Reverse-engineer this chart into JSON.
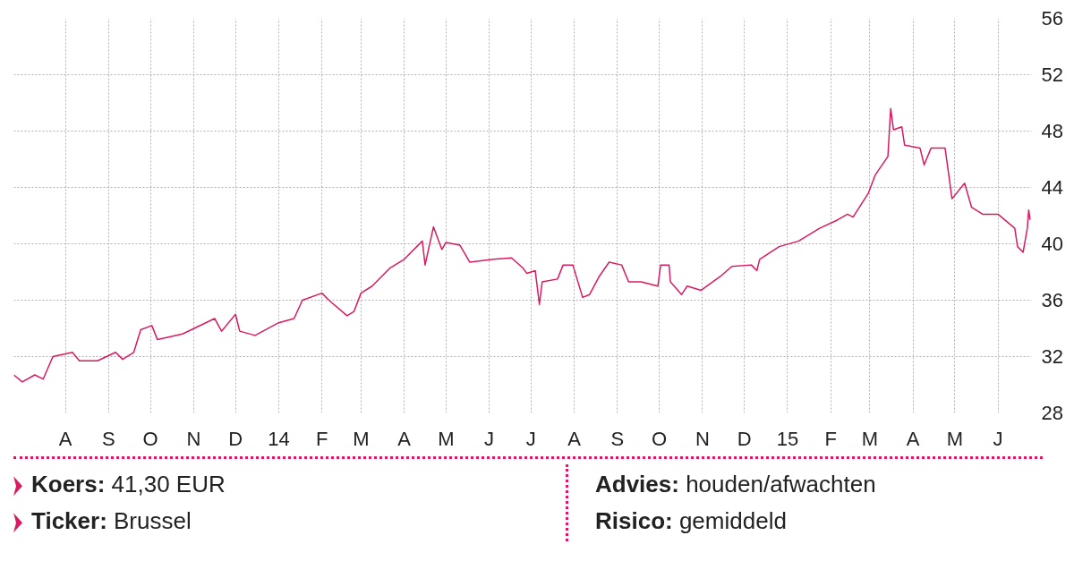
{
  "chart_data": {
    "type": "line",
    "x": [
      "2013-06-25",
      "2013-07-01",
      "2013-07-10",
      "2013-07-16",
      "2013-07-23",
      "2013-08-06",
      "2013-08-11",
      "2013-08-24",
      "2013-09-06",
      "2013-09-11",
      "2013-09-19",
      "2013-09-24",
      "2013-10-02",
      "2013-10-06",
      "2013-10-24",
      "2013-11-16",
      "2013-11-21",
      "2013-12-01",
      "2013-12-04",
      "2013-12-15",
      "2014-01-01",
      "2014-01-12",
      "2014-01-18",
      "2014-02-01",
      "2014-02-06",
      "2014-02-19",
      "2014-02-24",
      "2014-03-01",
      "2014-03-09",
      "2014-03-22",
      "2014-04-01",
      "2014-04-14",
      "2014-04-16",
      "2014-04-22",
      "2014-04-28",
      "2014-05-01",
      "2014-05-11",
      "2014-05-18",
      "2014-06-04",
      "2014-06-17",
      "2014-06-25",
      "2014-06-28",
      "2014-07-04",
      "2014-07-07",
      "2014-07-09",
      "2014-07-20",
      "2014-07-24",
      "2014-07-31",
      "2014-08-07",
      "2014-08-12",
      "2014-08-19",
      "2014-08-26",
      "2014-09-04",
      "2014-09-09",
      "2014-09-18",
      "2014-09-30",
      "2014-10-02",
      "2014-10-08",
      "2014-10-09",
      "2014-10-17",
      "2014-10-21",
      "2014-10-31",
      "2014-11-14",
      "2014-11-22",
      "2014-12-06",
      "2014-12-10",
      "2014-12-12",
      "2014-12-26",
      "2015-01-09",
      "2015-01-24",
      "2015-02-06",
      "2015-02-13",
      "2015-02-17",
      "2015-02-28",
      "2015-03-05",
      "2015-03-14",
      "2015-03-16",
      "2015-03-18",
      "2015-03-24",
      "2015-03-26",
      "2015-04-06",
      "2015-04-09",
      "2015-04-14",
      "2015-04-24",
      "2015-04-29",
      "2015-05-08",
      "2015-05-13",
      "2015-05-21",
      "2015-06-01",
      "2015-06-13",
      "2015-06-15",
      "2015-06-19",
      "2015-06-22",
      "2015-06-23",
      "2015-06-24"
    ],
    "series": [
      {
        "color": "#d81b60",
        "values": [
          30.7,
          30.2,
          30.7,
          30.4,
          32.0,
          32.3,
          31.7,
          31.7,
          32.3,
          31.8,
          32.3,
          33.9,
          34.2,
          33.2,
          33.6,
          34.7,
          33.8,
          35.0,
          33.8,
          33.5,
          34.4,
          34.7,
          36.0,
          36.5,
          36.0,
          34.9,
          35.2,
          36.5,
          37.0,
          38.3,
          38.9,
          40.2,
          38.5,
          41.2,
          39.6,
          40.1,
          39.9,
          38.7,
          38.9,
          39.0,
          38.3,
          37.9,
          38.1,
          35.7,
          37.3,
          37.5,
          38.5,
          38.5,
          36.2,
          36.4,
          37.7,
          38.7,
          38.5,
          37.3,
          37.3,
          37.0,
          38.5,
          38.5,
          37.3,
          36.4,
          37.0,
          36.7,
          37.7,
          38.4,
          38.5,
          38.1,
          38.9,
          39.8,
          40.2,
          41.1,
          41.7,
          42.1,
          41.9,
          43.6,
          44.9,
          46.2,
          49.6,
          48.1,
          48.3,
          47.0,
          46.8,
          45.6,
          46.8,
          46.8,
          43.2,
          44.3,
          42.6,
          42.1,
          42.1,
          41.1,
          39.8,
          39.4,
          41.1,
          42.4,
          41.7
        ]
      }
    ],
    "xlim": [
      "2013-06-25",
      "2015-06-25"
    ],
    "xticks": [
      {
        "value": "2013-08-01",
        "label": "A"
      },
      {
        "value": "2013-09-01",
        "label": "S"
      },
      {
        "value": "2013-10-01",
        "label": "O"
      },
      {
        "value": "2013-11-01",
        "label": "N"
      },
      {
        "value": "2013-12-01",
        "label": "D"
      },
      {
        "value": "2014-01-01",
        "label": "14"
      },
      {
        "value": "2014-02-01",
        "label": "F"
      },
      {
        "value": "2014-03-01",
        "label": "M"
      },
      {
        "value": "2014-04-01",
        "label": "A"
      },
      {
        "value": "2014-05-01",
        "label": "M"
      },
      {
        "value": "2014-06-01",
        "label": "J"
      },
      {
        "value": "2014-07-01",
        "label": "J"
      },
      {
        "value": "2014-08-01",
        "label": "A"
      },
      {
        "value": "2014-09-01",
        "label": "S"
      },
      {
        "value": "2014-10-01",
        "label": "O"
      },
      {
        "value": "2014-11-01",
        "label": "N"
      },
      {
        "value": "2014-12-01",
        "label": "D"
      },
      {
        "value": "2015-01-01",
        "label": "15"
      },
      {
        "value": "2015-02-01",
        "label": "F"
      },
      {
        "value": "2015-03-01",
        "label": "M"
      },
      {
        "value": "2015-04-01",
        "label": "A"
      },
      {
        "value": "2015-05-01",
        "label": "M"
      },
      {
        "value": "2015-06-01",
        "label": "J"
      }
    ],
    "ylim": [
      28,
      56
    ],
    "yticks": [
      28,
      32,
      36,
      40,
      44,
      48,
      52,
      56
    ],
    "grid": true,
    "line_style": "solid",
    "annotations": [
      "Koers: 41,30 EUR",
      "Ticker: Brussel",
      "Advies: houden/afwachten",
      "Risico: gemiddeld"
    ]
  }
}
